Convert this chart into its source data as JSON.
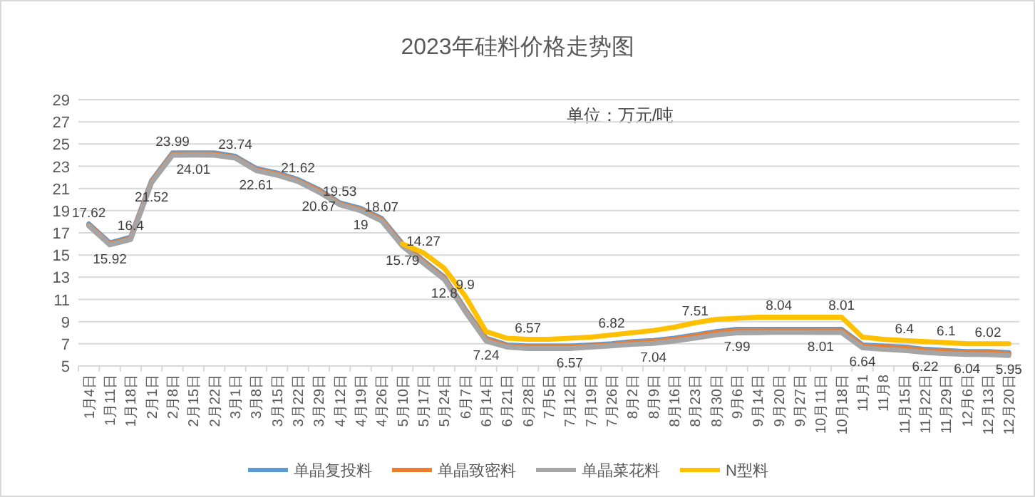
{
  "chart_data": {
    "type": "line",
    "title": "2023年硅料价格走势图",
    "annotations": [
      "单位：万元/吨"
    ],
    "categories": [
      "1月4日",
      "1月11日",
      "1月18日",
      "2月1日",
      "2月8日",
      "2月15日",
      "2月22日",
      "3月1日",
      "3月8日",
      "3月15日",
      "3月22日",
      "3月29日",
      "4月12日",
      "4月19日",
      "4月26日",
      "5月10日",
      "5月17日",
      "5月24日",
      "6月7日",
      "6月14日",
      "6月21日",
      "6月28日",
      "7月5日",
      "7月12日",
      "7月19日",
      "7月26日",
      "8月2日",
      "8月9日",
      "8月16日",
      "8月23日",
      "8月30日",
      "9月6日",
      "9月14日",
      "9月20日",
      "9月27日",
      "10月11日",
      "10月18日",
      "11月1",
      "11月8",
      "11月15日",
      "11月22日",
      "11月29日",
      "12月6日",
      "12月13日",
      "12月20日"
    ],
    "series": [
      {
        "name": "单晶复投料",
        "color": "#5b9bd5",
        "values": [
          17.8,
          16.1,
          16.6,
          21.7,
          24.2,
          24.2,
          24.2,
          23.9,
          22.8,
          22.4,
          21.8,
          20.9,
          19.7,
          19.2,
          18.3,
          16.0,
          14.5,
          13.0,
          10.1,
          7.5,
          6.9,
          6.8,
          6.8,
          6.8,
          6.9,
          7.0,
          7.2,
          7.3,
          7.5,
          7.8,
          8.1,
          8.3,
          8.3,
          8.3,
          8.3,
          8.3,
          8.3,
          6.9,
          6.8,
          6.7,
          6.5,
          6.4,
          6.3,
          6.3,
          6.2
        ]
      },
      {
        "name": "单晶致密料",
        "color": "#ed7d31",
        "values": [
          17.7,
          16.0,
          16.5,
          21.6,
          24.1,
          24.1,
          24.1,
          23.8,
          22.7,
          22.3,
          21.7,
          20.8,
          19.6,
          19.1,
          18.2,
          15.9,
          14.4,
          12.9,
          10.0,
          7.4,
          6.8,
          6.7,
          6.7,
          6.7,
          6.8,
          6.9,
          7.1,
          7.2,
          7.4,
          7.7,
          8.0,
          8.2,
          8.2,
          8.2,
          8.2,
          8.2,
          8.2,
          6.8,
          6.7,
          6.6,
          6.4,
          6.3,
          6.2,
          6.2,
          6.1
        ]
      },
      {
        "name": "单晶菜花料",
        "color": "#a5a5a5",
        "values": [
          17.62,
          15.92,
          16.4,
          21.52,
          23.99,
          24.01,
          24.0,
          23.74,
          22.61,
          22.2,
          21.62,
          20.67,
          19.53,
          19,
          18.07,
          15.79,
          14.27,
          12.8,
          9.9,
          7.24,
          6.7,
          6.57,
          6.57,
          6.57,
          6.7,
          6.82,
          6.95,
          7.04,
          7.25,
          7.51,
          7.8,
          7.99,
          8.0,
          8.04,
          8.03,
          8.01,
          8.01,
          6.64,
          6.5,
          6.4,
          6.22,
          6.1,
          6.04,
          6.02,
          5.95
        ],
        "value_labels": [
          "17.62",
          "15.92",
          "16.4",
          "21.52",
          "23.99",
          "24.01",
          null,
          "23.74",
          "22.61",
          null,
          "21.62",
          "20.67",
          "19.53",
          "19",
          "18.07",
          "15.79",
          "14.27",
          "12.8",
          "9.9",
          "7.24",
          null,
          "6.57",
          null,
          "6.57",
          null,
          "6.82",
          null,
          "7.04",
          null,
          "7.51",
          null,
          "7.99",
          null,
          "8.04",
          null,
          "8.01",
          "8.01",
          "6.64",
          null,
          "6.4",
          "6.22",
          "6.1",
          "6.04",
          "6.02",
          "5.95"
        ]
      },
      {
        "name": "N型料",
        "color": "#ffc000",
        "values": [
          null,
          null,
          null,
          null,
          null,
          null,
          null,
          null,
          null,
          null,
          null,
          null,
          null,
          null,
          null,
          16.0,
          15.2,
          13.8,
          11.3,
          8.1,
          7.5,
          7.4,
          7.4,
          7.5,
          7.6,
          7.8,
          8.0,
          8.2,
          8.5,
          8.9,
          9.2,
          9.3,
          9.4,
          9.4,
          9.4,
          9.4,
          9.4,
          7.6,
          7.4,
          7.3,
          7.2,
          7.1,
          7.0,
          7.0,
          7.0
        ]
      }
    ],
    "ylim": [
      5,
      29
    ],
    "yticks": [
      5,
      7,
      9,
      11,
      13,
      15,
      17,
      19,
      21,
      23,
      25,
      27,
      29
    ],
    "grid": "y",
    "legend": "bottom",
    "marker": "none",
    "line_style": "solid"
  }
}
